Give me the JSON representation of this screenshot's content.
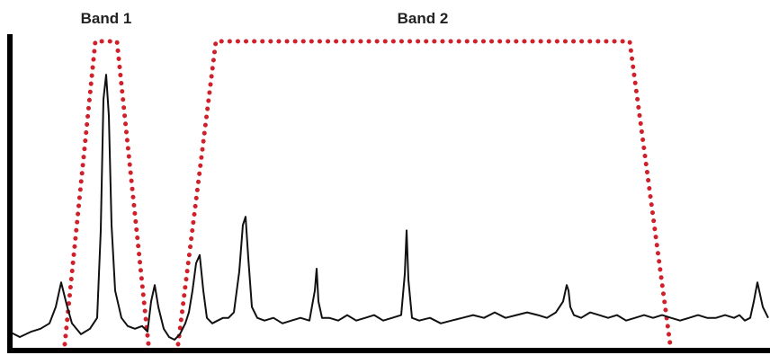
{
  "chart_data": {
    "type": "line",
    "title": "",
    "xlabel": "",
    "ylabel": "",
    "xlim": [
      0,
      856
    ],
    "ylim": [
      0,
      100
    ],
    "grid": false,
    "line_color": "#111111",
    "band_color": "#d0202a",
    "axis_color": "#000000",
    "bands": [
      {
        "label": "Band 1",
        "x_start": 72,
        "x_end": 165,
        "x_top_start": 106,
        "x_top_end": 130,
        "level": 97
      },
      {
        "label": "Band 2",
        "x_start": 198,
        "x_end": 745,
        "x_top_start": 240,
        "x_top_end": 700,
        "level": 97
      }
    ],
    "peaks": [
      {
        "x": 68,
        "height": 21
      },
      {
        "x": 118,
        "height": 97
      },
      {
        "x": 172,
        "height": 20
      },
      {
        "x": 222,
        "height": 31
      },
      {
        "x": 273,
        "height": 45
      },
      {
        "x": 352,
        "height": 26
      },
      {
        "x": 452,
        "height": 40
      },
      {
        "x": 632,
        "height": 20
      },
      {
        "x": 838,
        "height": 21
      }
    ],
    "series": [
      {
        "x": [
          10,
          22,
          35,
          45,
          55,
          62,
          68,
          74,
          80,
          90,
          100,
          108,
          112,
          115,
          118,
          121,
          124,
          128,
          135,
          142,
          150,
          158,
          164,
          168,
          172,
          176,
          182,
          188,
          194,
          200,
          206,
          210,
          214,
          218,
          222,
          226,
          230,
          236,
          242,
          248,
          254,
          260,
          266,
          270,
          273,
          276,
          280,
          286,
          294,
          304,
          314,
          324,
          334,
          344,
          350,
          352,
          354,
          358,
          366,
          376,
          386,
          396,
          406,
          416,
          426,
          436,
          446,
          450,
          452,
          454,
          458,
          466,
          478,
          490,
          502,
          514,
          526,
          538,
          550,
          562,
          574,
          586,
          598,
          608,
          618,
          626,
          630,
          632,
          634,
          638,
          646,
          656,
          666,
          676,
          686,
          696,
          706,
          716,
          726,
          736,
          746,
          756,
          766,
          776,
          786,
          796,
          806,
          816,
          822,
          828,
          834,
          838,
          842,
          848,
          854
        ],
        "y": [
          3,
          1,
          3,
          4,
          6,
          12,
          21,
          13,
          6,
          2,
          4,
          8,
          40,
          88,
          97,
          82,
          42,
          18,
          8,
          5,
          4,
          5,
          3,
          14,
          20,
          12,
          4,
          1,
          0,
          2,
          6,
          10,
          18,
          28,
          31,
          18,
          8,
          6,
          7,
          8,
          8,
          10,
          25,
          42,
          45,
          30,
          12,
          8,
          7,
          8,
          6,
          7,
          8,
          7,
          18,
          26,
          14,
          8,
          8,
          7,
          9,
          7,
          8,
          9,
          7,
          8,
          9,
          24,
          40,
          22,
          8,
          7,
          8,
          6,
          7,
          8,
          9,
          8,
          10,
          8,
          9,
          10,
          9,
          8,
          10,
          14,
          20,
          18,
          12,
          9,
          8,
          10,
          9,
          8,
          9,
          7,
          8,
          9,
          8,
          9,
          8,
          7,
          8,
          9,
          8,
          8,
          9,
          8,
          9,
          7,
          8,
          14,
          21,
          12,
          8
        ]
      }
    ]
  }
}
